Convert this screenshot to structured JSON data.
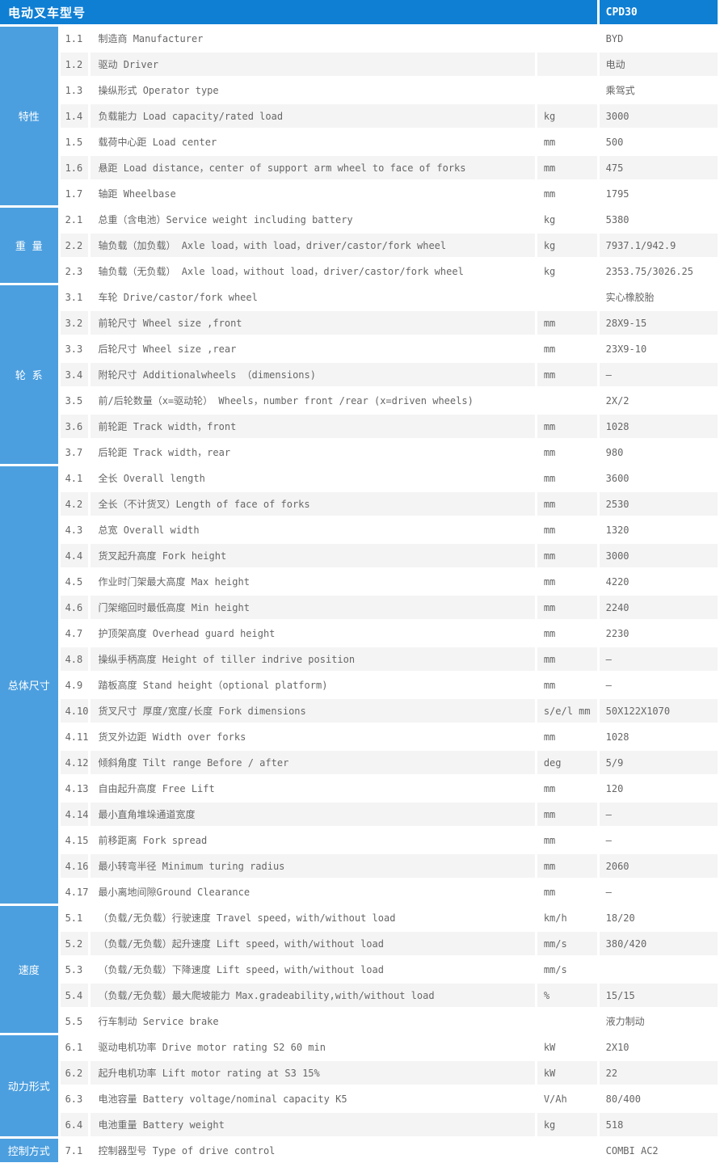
{
  "header": {
    "title": "电动叉车型号",
    "model": "CPD30"
  },
  "colors": {
    "header_bg": "#0f7fd4",
    "sidebar_bg": "#4c9fdf",
    "alt_row_bg": "#f4f4f4",
    "text": "#666666"
  },
  "table": {
    "sections": [
      {
        "label": "特性",
        "rows": [
          {
            "no": "1.1",
            "desc": "制造商 Manufacturer",
            "unit": "",
            "value": "BYD"
          },
          {
            "no": "1.2",
            "desc": "驱动 Driver",
            "unit": "",
            "value": "电动"
          },
          {
            "no": "1.3",
            "desc": "操纵形式 Operator type",
            "unit": "",
            "value": "乘驾式"
          },
          {
            "no": "1.4",
            "desc": "负载能力 Load capacity/rated load",
            "unit": "kg",
            "value": "3000"
          },
          {
            "no": "1.5",
            "desc": "载荷中心距 Load center",
            "unit": "mm",
            "value": "500"
          },
          {
            "no": "1.6",
            "desc": "悬距 Load distance，center of support arm wheel to face of forks",
            "unit": "mm",
            "value": "475"
          },
          {
            "no": "1.7",
            "desc": "轴距 Wheelbase",
            "unit": "mm",
            "value": "1795"
          }
        ]
      },
      {
        "label": "重 量",
        "rows": [
          {
            "no": "2.1",
            "desc": "总重（含电池）Service weight including battery",
            "unit": "kg",
            "value": "5380"
          },
          {
            "no": "2.2",
            "desc": "轴负载（加负载） Axle load，with load，driver/castor/fork wheel",
            "unit": "kg",
            "value": "7937.1/942.9"
          },
          {
            "no": "2.3",
            "desc": "轴负载（无负载） Axle load，without load，driver/castor/fork wheel",
            "unit": "kg",
            "value": "2353.75/3026.25"
          }
        ]
      },
      {
        "label": "轮 系",
        "rows": [
          {
            "no": "3.1",
            "desc": "车轮 Drive/castor/fork wheel",
            "unit": "",
            "value": "实心橡胶胎"
          },
          {
            "no": "3.2",
            "desc": "前轮尺寸 Wheel size ,front",
            "unit": "mm",
            "value": "28X9-15"
          },
          {
            "no": "3.3",
            "desc": "后轮尺寸 Wheel size ,rear",
            "unit": "mm",
            "value": "23X9-10"
          },
          {
            "no": "3.4",
            "desc": "附轮尺寸 Additionalwheels （dimensions)",
            "unit": "mm",
            "value": "—"
          },
          {
            "no": "3.5",
            "desc": "前/后轮数量（x=驱动轮） Wheels，number front /rear (x=driven wheels)",
            "unit": "",
            "value": "2X/2"
          },
          {
            "no": "3.6",
            "desc": "前轮距 Track width，front",
            "unit": "mm",
            "value": "1028"
          },
          {
            "no": "3.7",
            "desc": "后轮距 Track width，rear",
            "unit": "mm",
            "value": "980"
          }
        ]
      },
      {
        "label": "总体尺寸",
        "rows": [
          {
            "no": "4.1",
            "desc": "全长 Overall length",
            "unit": "mm",
            "value": "3600"
          },
          {
            "no": "4.2",
            "desc": "全长（不计货叉）Length of face of forks",
            "unit": "mm",
            "value": "2530"
          },
          {
            "no": "4.3",
            "desc": "总宽 Overall width",
            "unit": "mm",
            "value": "1320"
          },
          {
            "no": "4.4",
            "desc": "货叉起升高度 Fork height",
            "unit": "mm",
            "value": "3000"
          },
          {
            "no": "4.5",
            "desc": "作业时门架最大高度 Max height",
            "unit": "mm",
            "value": "4220"
          },
          {
            "no": "4.6",
            "desc": "门架缩回时最低高度 Min height",
            "unit": "mm",
            "value": "2240"
          },
          {
            "no": "4.7",
            "desc": "护顶架高度 Overhead guard height",
            "unit": "mm",
            "value": "2230"
          },
          {
            "no": "4.8",
            "desc": "操纵手柄高度 Height of tiller indrive position",
            "unit": "mm",
            "value": "—"
          },
          {
            "no": "4.9",
            "desc": "踏板高度 Stand height（optional platform)",
            "unit": "mm",
            "value": "—"
          },
          {
            "no": "4.10",
            "desc": "货叉尺寸 厚度/宽度/长度 Fork dimensions",
            "unit": "s/e/l mm",
            "value": "50X122X1070"
          },
          {
            "no": "4.11",
            "desc": "货叉外边距 Width over forks",
            "unit": "mm",
            "value": "1028"
          },
          {
            "no": "4.12",
            "desc": "倾斜角度 Tilt range Before / after",
            "unit": "deg",
            "value": "5/9"
          },
          {
            "no": "4.13",
            "desc": "自由起升高度 Free Lift",
            "unit": "mm",
            "value": "120"
          },
          {
            "no": "4.14",
            "desc": "最小直角堆垛通道宽度",
            "unit": "mm",
            "value": "—"
          },
          {
            "no": "4.15",
            "desc": "前移距离 Fork spread",
            "unit": "mm",
            "value": "—"
          },
          {
            "no": "4.16",
            "desc": "最小转弯半径 Minimum turing radius",
            "unit": "mm",
            "value": "2060"
          },
          {
            "no": "4.17",
            "desc": "最小离地间隙Ground Clearance",
            "unit": "mm",
            "value": "—"
          }
        ]
      },
      {
        "label": "速度",
        "rows": [
          {
            "no": "5.1",
            "desc": "（负载/无负载）行驶速度 Travel speed，with/without load",
            "unit": "km/h",
            "value": "18/20"
          },
          {
            "no": "5.2",
            "desc": "（负载/无负载）起升速度 Lift speed，with/without load",
            "unit": "mm/s",
            "value": "380/420"
          },
          {
            "no": "5.3",
            "desc": "（负载/无负载）下降速度 Lift speed，with/without load",
            "unit": "mm/s",
            "value": ""
          },
          {
            "no": "5.4",
            "desc": "（负载/无负载）最大爬坡能力 Max.gradeability,with/without load",
            "unit": "%",
            "value": "15/15"
          },
          {
            "no": "5.5",
            "desc": "行车制动 Service brake",
            "unit": "",
            "value": "液力制动"
          }
        ]
      },
      {
        "label": "动力形式",
        "rows": [
          {
            "no": "6.1",
            "desc": "驱动电机功率 Drive motor rating S2 60 min",
            "unit": "kW",
            "value": "2X10"
          },
          {
            "no": "6.2",
            "desc": "起升电机功率 Lift motor rating at S3 15%",
            "unit": "kW",
            "value": "22"
          },
          {
            "no": "6.3",
            "desc": "电池容量 Battery voltage/nominal capacity K5",
            "unit": "V/Ah",
            "value": "80/400"
          },
          {
            "no": "6.4",
            "desc": "电池重量 Battery weight",
            "unit": "kg",
            "value": "518"
          }
        ]
      },
      {
        "label": "控制方式",
        "rows": [
          {
            "no": "7.1",
            "desc": "控制器型号 Type of drive control",
            "unit": "",
            "value": "COMBI AC2"
          }
        ]
      }
    ]
  }
}
